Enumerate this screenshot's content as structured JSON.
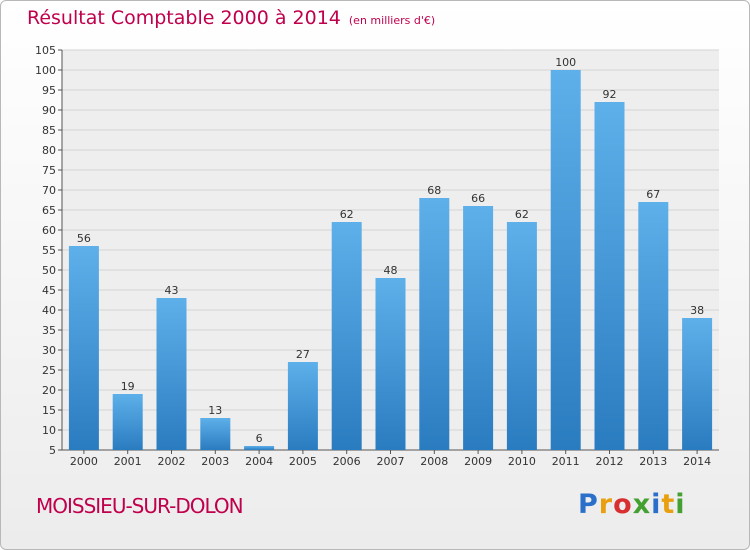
{
  "header": {
    "title": "Résultat Comptable 2000 à 2014",
    "subtitle": "(en milliers d'€)"
  },
  "footer": {
    "commune": "MOISSIEU-SUR-DOLON",
    "brand_letters": [
      {
        "ch": "P",
        "color": "#2a6fc9"
      },
      {
        "ch": "r",
        "color": "#e8a010"
      },
      {
        "ch": "o",
        "color": "#d83030"
      },
      {
        "ch": "x",
        "color": "#44a030"
      },
      {
        "ch": "i",
        "color": "#2a6fc9"
      },
      {
        "ch": "t",
        "color": "#e8a010"
      },
      {
        "ch": "i",
        "color": "#44a030"
      }
    ]
  },
  "colors": {
    "accent": "#c0004c",
    "bar_top": "#5eb0ea",
    "bar_bottom": "#2a7cc0"
  },
  "chart_data": {
    "type": "bar",
    "categories": [
      "2000",
      "2001",
      "2002",
      "2003",
      "2004",
      "2005",
      "2006",
      "2007",
      "2008",
      "2009",
      "2010",
      "2011",
      "2012",
      "2013",
      "2014"
    ],
    "values": [
      56,
      19,
      43,
      13,
      6,
      27,
      62,
      48,
      68,
      66,
      62,
      100,
      92,
      67,
      38
    ],
    "title": "Résultat Comptable 2000 à 2014",
    "xlabel": "",
    "ylabel": "",
    "ylim": [
      5,
      105
    ],
    "ytick_step": 5,
    "grid": true
  }
}
